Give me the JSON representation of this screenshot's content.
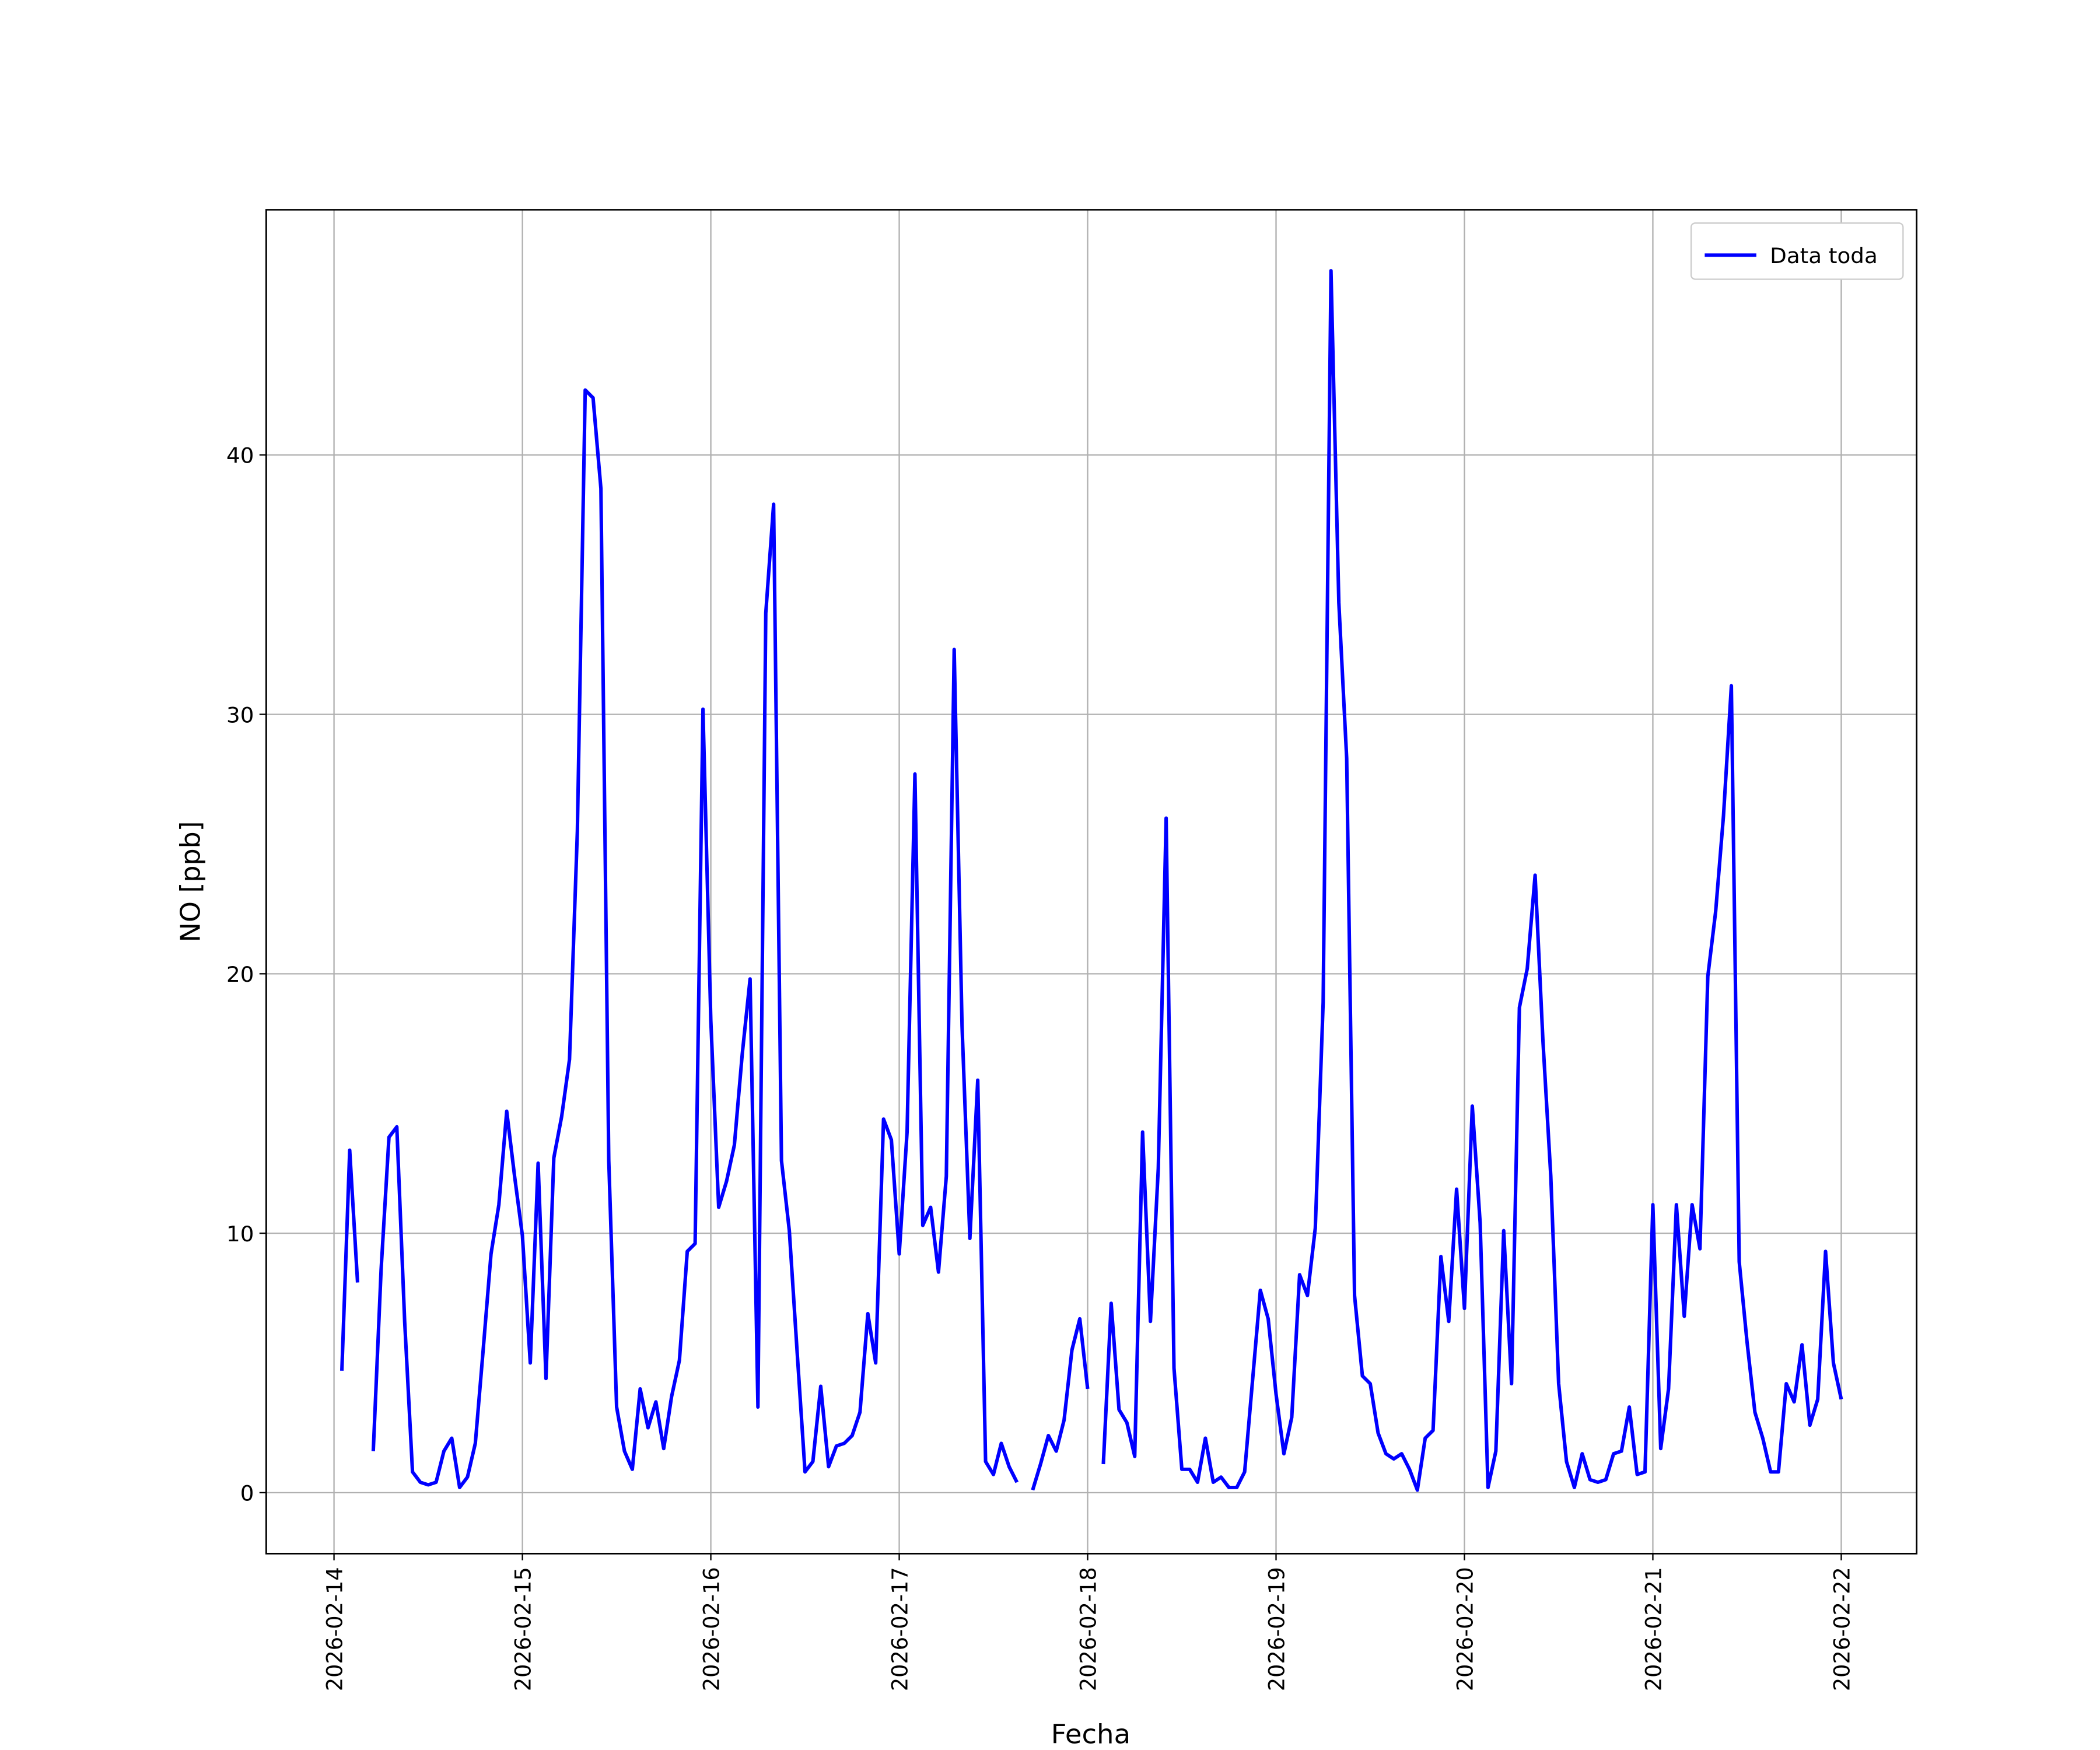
{
  "chart_data": {
    "type": "line",
    "xlabel": "Fecha",
    "ylabel": "NO [ppb]",
    "x": [
      "2026-02-14 01:00",
      "2026-02-14 02:00",
      "2026-02-14 03:00",
      "2026-02-14 04:00",
      "2026-02-14 05:00",
      "2026-02-14 06:00",
      "2026-02-14 07:00",
      "2026-02-14 08:00",
      "2026-02-14 09:00",
      "2026-02-14 10:00",
      "2026-02-14 11:00",
      "2026-02-14 12:00",
      "2026-02-14 13:00",
      "2026-02-14 14:00",
      "2026-02-14 15:00",
      "2026-02-14 16:00",
      "2026-02-14 17:00",
      "2026-02-14 18:00",
      "2026-02-14 19:00",
      "2026-02-14 20:00",
      "2026-02-14 21:00",
      "2026-02-14 22:00",
      "2026-02-14 23:00",
      "2026-02-15 00:00",
      "2026-02-15 01:00",
      "2026-02-15 02:00",
      "2026-02-15 03:00",
      "2026-02-15 04:00",
      "2026-02-15 05:00",
      "2026-02-15 06:00",
      "2026-02-15 07:00",
      "2026-02-15 08:00",
      "2026-02-15 09:00",
      "2026-02-15 10:00",
      "2026-02-15 11:00",
      "2026-02-15 12:00",
      "2026-02-15 13:00",
      "2026-02-15 14:00",
      "2026-02-15 15:00",
      "2026-02-15 16:00",
      "2026-02-15 17:00",
      "2026-02-15 18:00",
      "2026-02-15 19:00",
      "2026-02-15 20:00",
      "2026-02-15 21:00",
      "2026-02-15 22:00",
      "2026-02-15 23:00",
      "2026-02-16 00:00",
      "2026-02-16 01:00",
      "2026-02-16 02:00",
      "2026-02-16 03:00",
      "2026-02-16 04:00",
      "2026-02-16 05:00",
      "2026-02-16 06:00",
      "2026-02-16 07:00",
      "2026-02-16 08:00",
      "2026-02-16 09:00",
      "2026-02-16 10:00",
      "2026-02-16 11:00",
      "2026-02-16 12:00",
      "2026-02-16 13:00",
      "2026-02-16 14:00",
      "2026-02-16 15:00",
      "2026-02-16 16:00",
      "2026-02-16 17:00",
      "2026-02-16 18:00",
      "2026-02-16 19:00",
      "2026-02-16 20:00",
      "2026-02-16 21:00",
      "2026-02-16 22:00",
      "2026-02-16 23:00",
      "2026-02-17 00:00",
      "2026-02-17 01:00",
      "2026-02-17 02:00",
      "2026-02-17 03:00",
      "2026-02-17 04:00",
      "2026-02-17 05:00",
      "2026-02-17 06:00",
      "2026-02-17 07:00",
      "2026-02-17 08:00",
      "2026-02-17 09:00",
      "2026-02-17 10:00",
      "2026-02-17 11:00",
      "2026-02-17 12:00",
      "2026-02-17 13:00",
      "2026-02-17 14:00",
      "2026-02-17 15:00",
      "2026-02-17 16:00",
      "2026-02-17 17:00",
      "2026-02-17 18:00",
      "2026-02-17 19:00",
      "2026-02-17 20:00",
      "2026-02-17 21:00",
      "2026-02-17 22:00",
      "2026-02-17 23:00",
      "2026-02-18 00:00",
      "2026-02-18 01:00",
      "2026-02-18 02:00",
      "2026-02-18 03:00",
      "2026-02-18 04:00",
      "2026-02-18 05:00",
      "2026-02-18 06:00",
      "2026-02-18 07:00",
      "2026-02-18 08:00",
      "2026-02-18 09:00",
      "2026-02-18 10:00",
      "2026-02-18 11:00",
      "2026-02-18 12:00",
      "2026-02-18 13:00",
      "2026-02-18 14:00",
      "2026-02-18 15:00",
      "2026-02-18 16:00",
      "2026-02-18 17:00",
      "2026-02-18 18:00",
      "2026-02-18 19:00",
      "2026-02-18 20:00",
      "2026-02-18 21:00",
      "2026-02-18 22:00",
      "2026-02-18 23:00",
      "2026-02-19 00:00",
      "2026-02-19 01:00",
      "2026-02-19 02:00",
      "2026-02-19 03:00",
      "2026-02-19 04:00",
      "2026-02-19 05:00",
      "2026-02-19 06:00",
      "2026-02-19 07:00",
      "2026-02-19 08:00",
      "2026-02-19 09:00",
      "2026-02-19 10:00",
      "2026-02-19 11:00",
      "2026-02-19 12:00",
      "2026-02-19 13:00",
      "2026-02-19 14:00",
      "2026-02-19 15:00",
      "2026-02-19 16:00",
      "2026-02-19 17:00",
      "2026-02-19 18:00",
      "2026-02-19 19:00",
      "2026-02-19 20:00",
      "2026-02-19 21:00",
      "2026-02-19 22:00",
      "2026-02-19 23:00",
      "2026-02-20 00:00",
      "2026-02-20 01:00",
      "2026-02-20 02:00",
      "2026-02-20 03:00",
      "2026-02-20 04:00",
      "2026-02-20 05:00",
      "2026-02-20 06:00",
      "2026-02-20 07:00",
      "2026-02-20 08:00",
      "2026-02-20 09:00",
      "2026-02-20 10:00",
      "2026-02-20 11:00",
      "2026-02-20 12:00",
      "2026-02-20 13:00",
      "2026-02-20 14:00",
      "2026-02-20 15:00",
      "2026-02-20 16:00",
      "2026-02-20 17:00",
      "2026-02-20 18:00",
      "2026-02-20 19:00",
      "2026-02-20 20:00",
      "2026-02-20 21:00",
      "2026-02-20 22:00",
      "2026-02-20 23:00",
      "2026-02-21 00:00",
      "2026-02-21 01:00",
      "2026-02-21 02:00",
      "2026-02-21 03:00",
      "2026-02-21 04:00",
      "2026-02-21 05:00",
      "2026-02-21 06:00",
      "2026-02-21 07:00",
      "2026-02-21 08:00",
      "2026-02-21 09:00",
      "2026-02-21 10:00",
      "2026-02-21 11:00",
      "2026-02-21 12:00",
      "2026-02-21 13:00",
      "2026-02-21 14:00",
      "2026-02-21 15:00",
      "2026-02-21 16:00",
      "2026-02-21 17:00",
      "2026-02-21 18:00",
      "2026-02-21 19:00",
      "2026-02-21 20:00",
      "2026-02-21 21:00",
      "2026-02-21 22:00",
      "2026-02-21 23:00",
      "2026-02-22 00:00"
    ],
    "series": [
      {
        "name": "Data toda",
        "color": "#0000ff",
        "values": [
          4.7,
          13.2,
          8.1,
          null,
          1.6,
          8.6,
          13.7,
          14.1,
          6.6,
          0.8,
          0.4,
          0.3,
          0.4,
          1.6,
          2.1,
          0.2,
          0.6,
          1.9,
          5.5,
          9.2,
          11.1,
          14.7,
          12.2,
          9.9,
          5.0,
          12.7,
          4.4,
          12.9,
          14.5,
          16.7,
          25.5,
          42.5,
          42.2,
          38.7,
          12.8,
          3.3,
          1.6,
          0.9,
          4.0,
          2.5,
          3.5,
          1.7,
          3.7,
          5.1,
          9.3,
          9.6,
          30.2,
          18.2,
          11.0,
          12.0,
          13.4,
          16.9,
          19.8,
          3.3,
          33.9,
          38.1,
          12.8,
          10.1,
          5.4,
          0.8,
          1.2,
          4.1,
          1.0,
          1.8,
          1.9,
          2.2,
          3.1,
          6.9,
          5.0,
          14.4,
          13.6,
          9.2,
          13.9,
          27.7,
          10.3,
          11.0,
          8.5,
          12.2,
          32.5,
          18.0,
          9.8,
          15.9,
          1.2,
          0.7,
          1.9,
          1.0,
          0.4,
          null,
          0.1,
          1.1,
          2.2,
          1.6,
          2.8,
          5.5,
          6.7,
          4.0,
          null,
          1.1,
          7.3,
          3.2,
          2.7,
          1.4,
          13.9,
          6.6,
          12.5,
          26.0,
          4.8,
          0.9,
          0.9,
          0.4,
          2.1,
          0.4,
          0.6,
          0.2,
          0.2,
          0.8,
          4.3,
          7.8,
          6.7,
          3.8,
          1.5,
          2.9,
          8.4,
          7.6,
          10.2,
          18.9,
          47.1,
          34.3,
          28.3,
          7.6,
          4.5,
          4.2,
          2.3,
          1.5,
          1.3,
          1.5,
          0.9,
          0.1,
          2.1,
          2.4,
          9.1,
          6.6,
          11.7,
          7.1,
          14.9,
          10.4,
          0.2,
          1.6,
          10.1,
          4.2,
          18.7,
          20.2,
          23.8,
          17.4,
          12.2,
          4.2,
          1.2,
          0.2,
          1.5,
          0.5,
          0.4,
          0.5,
          1.5,
          1.6,
          3.3,
          0.7,
          0.8,
          11.1,
          1.7,
          4.0,
          11.1,
          6.8,
          11.1,
          9.4,
          19.9,
          22.4,
          26.1,
          31.1,
          8.9,
          5.8,
          3.1,
          2.1,
          0.8,
          0.8,
          4.2,
          3.5,
          5.7,
          2.6,
          3.6,
          9.3,
          5.0,
          3.6
        ]
      }
    ],
    "xlim": [
      "2026-02-13 15:22",
      "2026-02-22 09:36"
    ],
    "xticks": [
      "2026-02-14",
      "2026-02-15",
      "2026-02-16",
      "2026-02-17",
      "2026-02-18",
      "2026-02-19",
      "2026-02-20",
      "2026-02-21",
      "2026-02-22"
    ],
    "ylim": [
      -2.35,
      49.45
    ],
    "yticks": [
      0,
      10,
      20,
      30,
      40
    ],
    "grid": true,
    "legend": "upper right"
  }
}
